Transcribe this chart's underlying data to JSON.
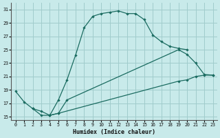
{
  "xlabel": "Humidex (Indice chaleur)",
  "bg_color": "#c8eaea",
  "grid_color": "#a0cccc",
  "line_color": "#1a6b60",
  "xlim": [
    -0.5,
    23.5
  ],
  "ylim": [
    14.5,
    32.0
  ],
  "xticks": [
    0,
    1,
    2,
    3,
    4,
    5,
    6,
    7,
    8,
    9,
    10,
    11,
    12,
    13,
    14,
    15,
    16,
    17,
    18,
    19,
    20,
    21,
    22,
    23
  ],
  "yticks": [
    15,
    17,
    19,
    21,
    23,
    25,
    27,
    29,
    31
  ],
  "curve1_x": [
    0,
    1,
    2,
    3,
    4,
    5,
    6,
    7,
    8,
    9,
    10,
    11,
    12,
    13,
    14,
    15,
    16,
    17,
    18,
    19,
    20
  ],
  "curve1_y": [
    18.8,
    17.2,
    16.2,
    15.2,
    15.2,
    17.5,
    20.5,
    24.2,
    28.3,
    30.0,
    30.4,
    30.6,
    30.8,
    30.4,
    30.4,
    29.5,
    27.2,
    26.2,
    25.5,
    25.2,
    25.0
  ],
  "curve2_x": [
    4,
    5,
    6,
    19,
    20,
    21,
    22,
    23
  ],
  "curve2_y": [
    15.2,
    15.5,
    17.5,
    25.0,
    24.3,
    23.0,
    21.3,
    21.2
  ],
  "curve3_x": [
    2,
    3,
    4,
    5,
    19,
    20,
    21,
    22,
    23
  ],
  "curve3_y": [
    16.2,
    15.8,
    15.2,
    15.5,
    20.3,
    20.5,
    21.0,
    21.2,
    21.2
  ]
}
